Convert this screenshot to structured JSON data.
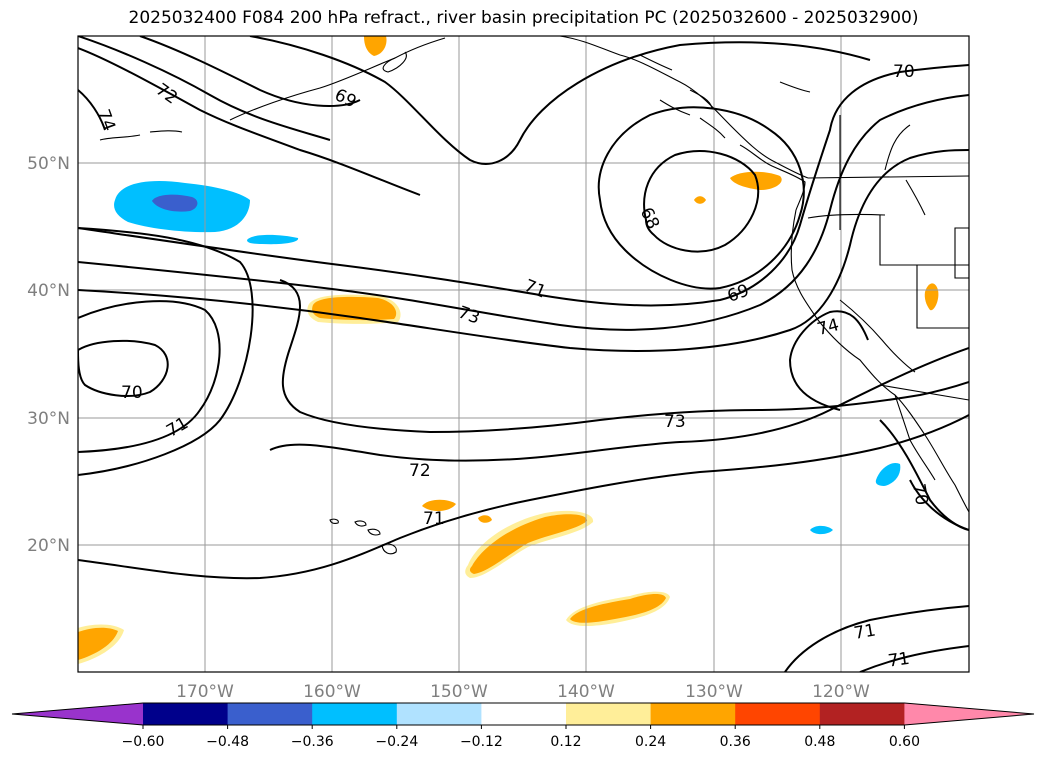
{
  "title": "2025032400 F084 200 hPa refract., river basin precipitation PC (2025032600 - 2025032900)",
  "map": {
    "lat_labels": [
      "50°N",
      "40°N",
      "30°N",
      "20°N"
    ],
    "lon_labels": [
      "170°W",
      "160°W",
      "150°W",
      "140°W",
      "130°W",
      "120°W"
    ],
    "contour_labels": [
      "74",
      "72",
      "69",
      "70",
      "68",
      "71",
      "69",
      "73",
      "74",
      "70",
      "71",
      "73",
      "72",
      "71",
      "70",
      "71",
      "71"
    ],
    "contour_color": "#000000",
    "gridlines": true
  },
  "colorbar": {
    "ticks": [
      "−0.60",
      "−0.48",
      "−0.36",
      "−0.24",
      "−0.12",
      "0.12",
      "0.24",
      "0.36",
      "0.48",
      "0.60"
    ],
    "colors": [
      "#9933cc",
      "#00008b",
      "#3a5fcd",
      "#00bfff",
      "#b0e2ff",
      "#ffffff",
      "#ffee99",
      "#ffa500",
      "#ff4500",
      "#b22222",
      "#ff88aa"
    ],
    "extend": "both"
  }
}
